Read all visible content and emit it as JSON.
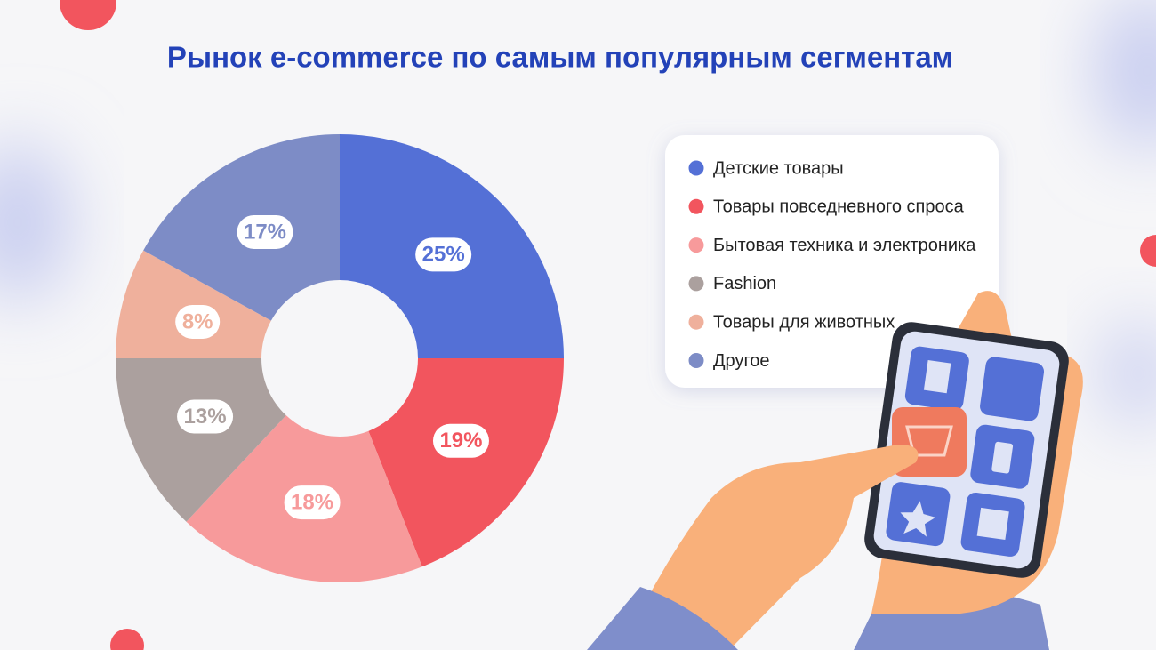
{
  "chart_data": {
    "type": "pie",
    "title": "Рынок e-commerce по самым популярным сегментам",
    "categories": [
      "Детские товары",
      "Товары повседневного спроса",
      "Бытовая техника и электроника",
      "Fashion",
      "Товары для животных",
      "Другое"
    ],
    "values": [
      25,
      19,
      18,
      13,
      8,
      17
    ],
    "value_labels": [
      "25%",
      "19%",
      "18%",
      "13%",
      "8%",
      "17%"
    ],
    "colors": [
      "#5470d6",
      "#f2555e",
      "#f79a9b",
      "#aba09e",
      "#efb09c",
      "#7d8cc6"
    ]
  }
}
